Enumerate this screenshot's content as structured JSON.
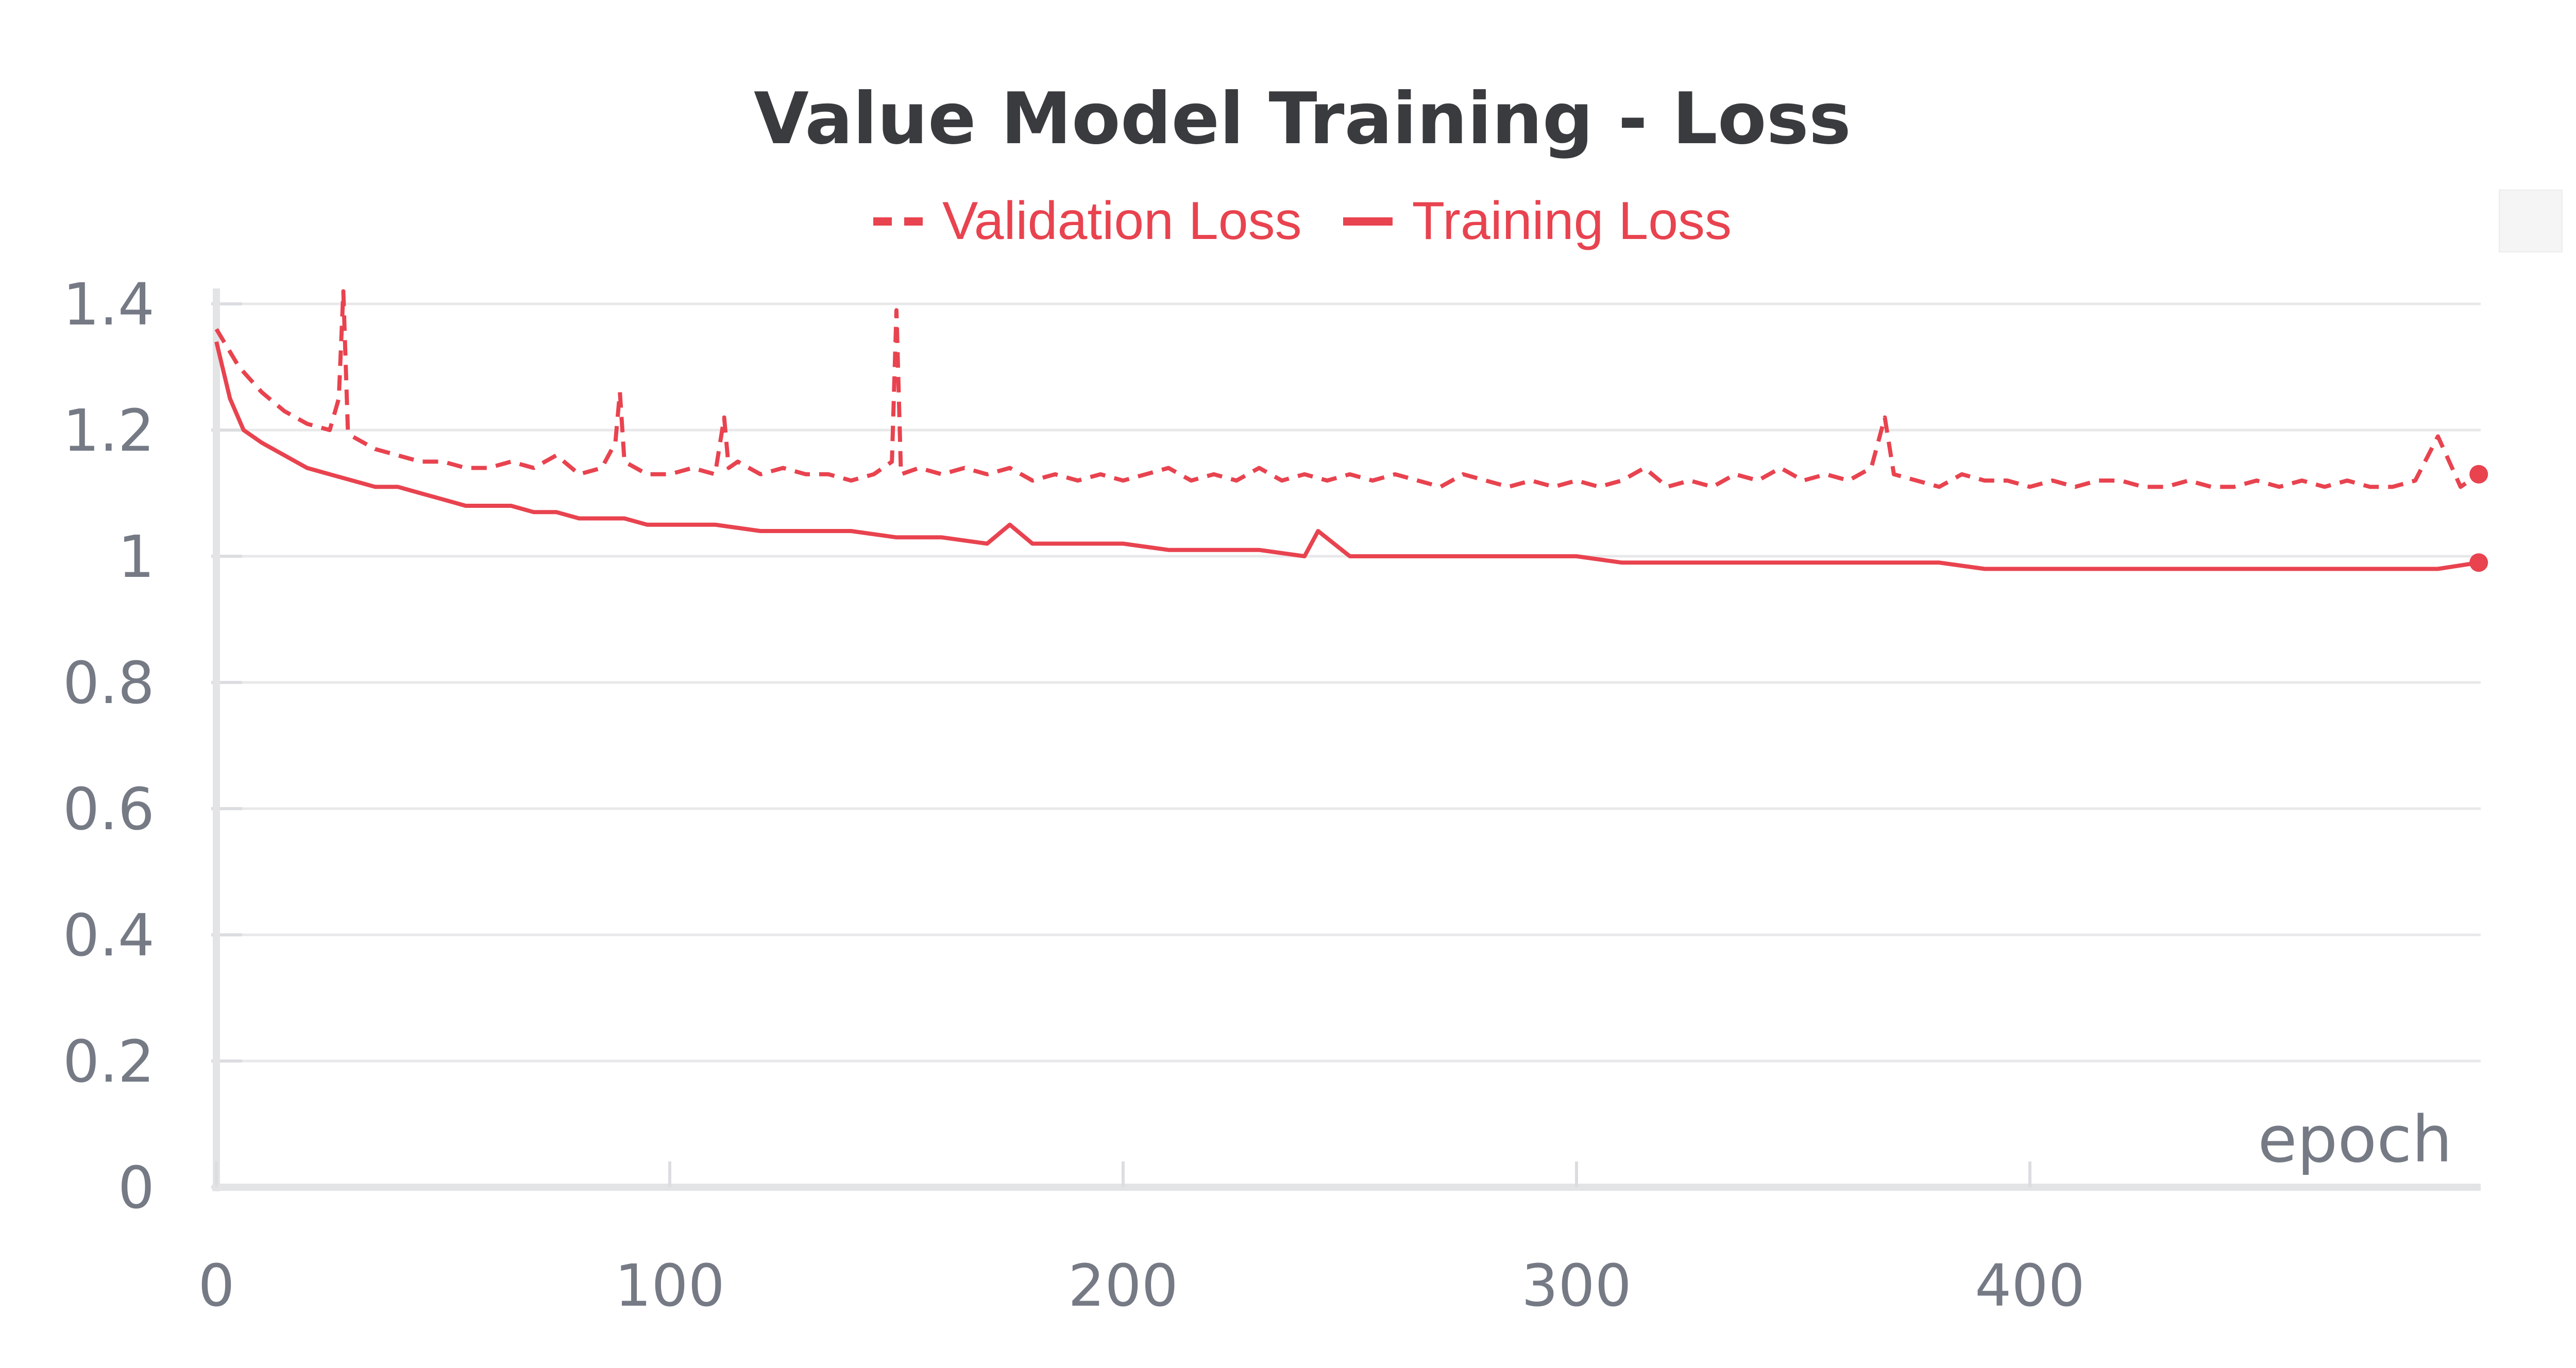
{
  "chart_data": {
    "type": "line",
    "title": "Value Model Training - Loss",
    "xlabel": "epoch",
    "ylabel": "",
    "xlim": [
      0,
      500
    ],
    "ylim": [
      0,
      1.4
    ],
    "xticks": [
      0,
      100,
      200,
      300,
      400
    ],
    "yticks": [
      0,
      0.2,
      0.4,
      0.6,
      0.8,
      1.0,
      1.2,
      1.4
    ],
    "ytick_labels": [
      "0",
      "0.2",
      "0.4",
      "0.6",
      "0.8",
      "1",
      "1.2",
      "1.4"
    ],
    "legend_position": "top-center",
    "grid": true,
    "series": [
      {
        "name": "Validation Loss",
        "style": "dashed",
        "color": "#e8434f",
        "x": [
          0,
          5,
          10,
          15,
          20,
          25,
          27,
          28,
          29,
          30,
          35,
          40,
          45,
          50,
          55,
          60,
          65,
          70,
          75,
          80,
          85,
          88,
          89,
          90,
          95,
          100,
          105,
          110,
          112,
          113,
          115,
          120,
          125,
          130,
          135,
          140,
          145,
          149,
          150,
          151,
          155,
          160,
          165,
          170,
          175,
          180,
          185,
          190,
          195,
          200,
          205,
          210,
          215,
          220,
          225,
          230,
          235,
          240,
          245,
          250,
          255,
          260,
          265,
          270,
          275,
          280,
          285,
          290,
          295,
          300,
          305,
          310,
          315,
          320,
          325,
          330,
          335,
          340,
          345,
          350,
          355,
          360,
          365,
          368,
          370,
          375,
          380,
          385,
          390,
          395,
          400,
          405,
          410,
          415,
          420,
          425,
          430,
          435,
          440,
          445,
          450,
          455,
          460,
          465,
          470,
          475,
          480,
          485,
          490,
          495,
          499
        ],
        "values": [
          1.36,
          1.3,
          1.26,
          1.23,
          1.21,
          1.2,
          1.25,
          1.42,
          1.2,
          1.19,
          1.17,
          1.16,
          1.15,
          1.15,
          1.14,
          1.14,
          1.15,
          1.14,
          1.16,
          1.13,
          1.14,
          1.18,
          1.26,
          1.15,
          1.13,
          1.13,
          1.14,
          1.13,
          1.22,
          1.14,
          1.15,
          1.13,
          1.14,
          1.13,
          1.13,
          1.12,
          1.13,
          1.15,
          1.39,
          1.13,
          1.14,
          1.13,
          1.14,
          1.13,
          1.14,
          1.12,
          1.13,
          1.12,
          1.13,
          1.12,
          1.13,
          1.14,
          1.12,
          1.13,
          1.12,
          1.14,
          1.12,
          1.13,
          1.12,
          1.13,
          1.12,
          1.13,
          1.12,
          1.11,
          1.13,
          1.12,
          1.11,
          1.12,
          1.11,
          1.12,
          1.11,
          1.12,
          1.14,
          1.11,
          1.12,
          1.11,
          1.13,
          1.12,
          1.14,
          1.12,
          1.13,
          1.12,
          1.14,
          1.22,
          1.13,
          1.12,
          1.11,
          1.13,
          1.12,
          1.12,
          1.11,
          1.12,
          1.11,
          1.12,
          1.12,
          1.11,
          1.11,
          1.12,
          1.11,
          1.11,
          1.12,
          1.11,
          1.12,
          1.11,
          1.12,
          1.11,
          1.11,
          1.12,
          1.19,
          1.11,
          1.13
        ]
      },
      {
        "name": "Training Loss",
        "style": "solid",
        "color": "#e8434f",
        "x": [
          0,
          3,
          6,
          10,
          15,
          20,
          25,
          30,
          35,
          40,
          45,
          50,
          55,
          60,
          65,
          70,
          75,
          80,
          85,
          90,
          95,
          100,
          110,
          120,
          130,
          140,
          150,
          160,
          170,
          175,
          180,
          190,
          200,
          210,
          220,
          230,
          240,
          243,
          250,
          260,
          270,
          280,
          290,
          300,
          310,
          320,
          330,
          340,
          350,
          360,
          370,
          380,
          390,
          400,
          410,
          420,
          430,
          440,
          450,
          460,
          470,
          480,
          490,
          499
        ],
        "values": [
          1.34,
          1.25,
          1.2,
          1.18,
          1.16,
          1.14,
          1.13,
          1.12,
          1.11,
          1.11,
          1.1,
          1.09,
          1.08,
          1.08,
          1.08,
          1.07,
          1.07,
          1.06,
          1.06,
          1.06,
          1.05,
          1.05,
          1.05,
          1.04,
          1.04,
          1.04,
          1.03,
          1.03,
          1.02,
          1.05,
          1.02,
          1.02,
          1.02,
          1.01,
          1.01,
          1.01,
          1.0,
          1.04,
          1.0,
          1.0,
          1.0,
          1.0,
          1.0,
          1.0,
          0.99,
          0.99,
          0.99,
          0.99,
          0.99,
          0.99,
          0.99,
          0.99,
          0.98,
          0.98,
          0.98,
          0.98,
          0.98,
          0.98,
          0.98,
          0.98,
          0.98,
          0.98,
          0.98,
          0.99
        ]
      }
    ]
  }
}
